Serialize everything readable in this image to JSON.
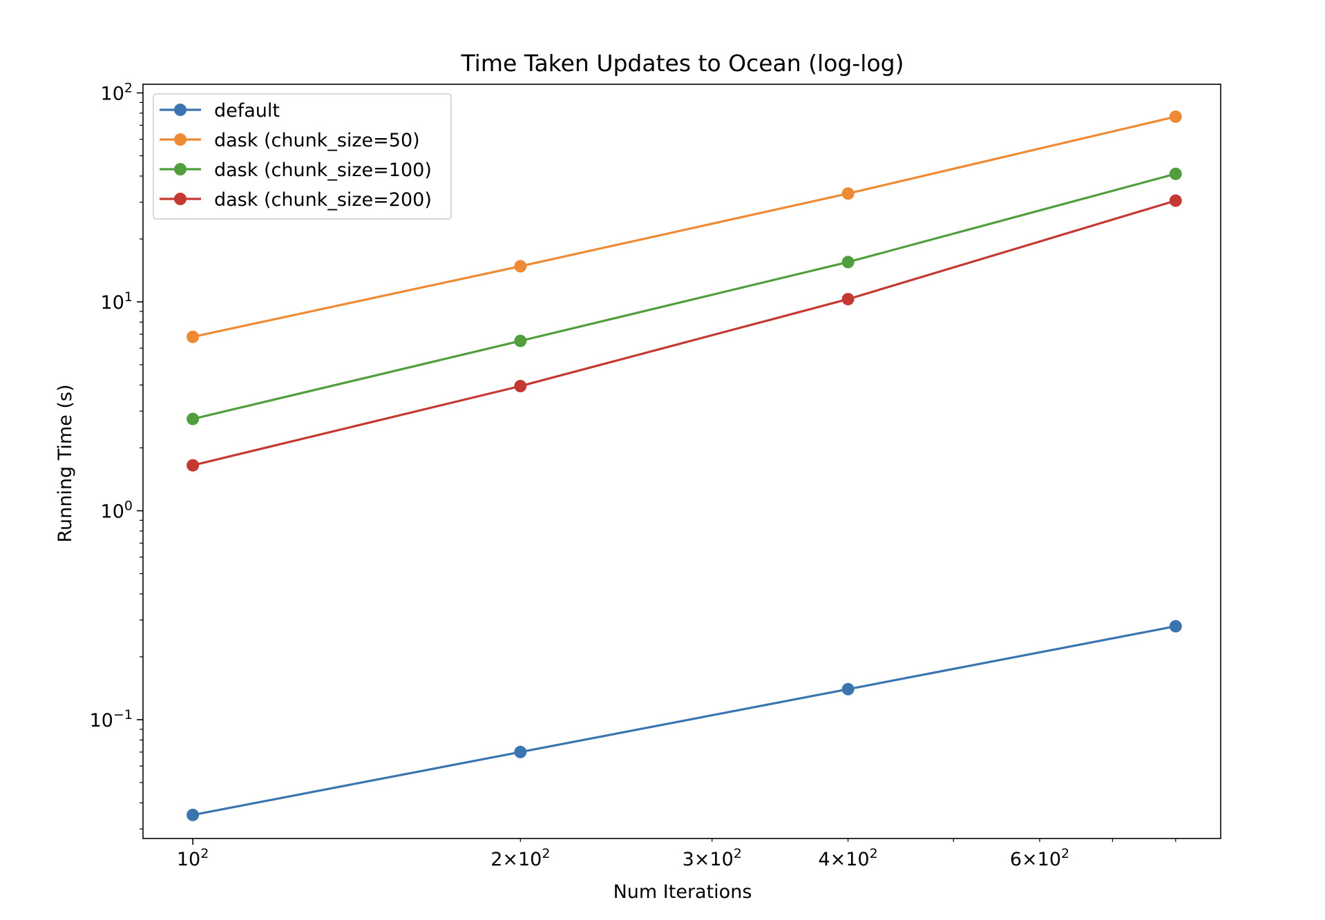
{
  "chart_data": {
    "type": "line",
    "title": "Time Taken Updates to Ocean (log-log)",
    "xlabel": "Num Iterations",
    "ylabel": "Running Time (s)",
    "x_scale": "log",
    "y_scale": "log",
    "xlim": [
      90,
      880
    ],
    "ylim": [
      0.027,
      110
    ],
    "grid": false,
    "legend_position": "top-left",
    "x": [
      100,
      200,
      400,
      800
    ],
    "x_major_ticks": [
      {
        "value": 100,
        "base": "10",
        "exp": "2",
        "mantissa": ""
      }
    ],
    "x_minor_labeled_ticks": [
      {
        "value": 200,
        "mantissa": "2",
        "base": "10",
        "exp": "2"
      },
      {
        "value": 300,
        "mantissa": "3",
        "base": "10",
        "exp": "2"
      },
      {
        "value": 400,
        "mantissa": "4",
        "base": "10",
        "exp": "2"
      },
      {
        "value": 600,
        "mantissa": "6",
        "base": "10",
        "exp": "2"
      }
    ],
    "y_major_ticks": [
      {
        "value": 0.1,
        "base": "10",
        "exp": "−1"
      },
      {
        "value": 1,
        "base": "10",
        "exp": "0"
      },
      {
        "value": 10,
        "base": "10",
        "exp": "1"
      },
      {
        "value": 100,
        "base": "10",
        "exp": "2"
      }
    ],
    "series": [
      {
        "name": "default",
        "color": "#3a75af",
        "values": [
          0.035,
          0.07,
          0.14,
          0.28
        ]
      },
      {
        "name": "dask (chunk_size=50)",
        "color": "#ee8a34",
        "values": [
          6.8,
          14.8,
          33,
          77
        ]
      },
      {
        "name": "dask (chunk_size=100)",
        "color": "#519e3e",
        "values": [
          2.75,
          6.5,
          15.5,
          41
        ]
      },
      {
        "name": "dask (chunk_size=200)",
        "color": "#c43932",
        "values": [
          1.65,
          3.95,
          10.3,
          30.5
        ]
      }
    ]
  }
}
